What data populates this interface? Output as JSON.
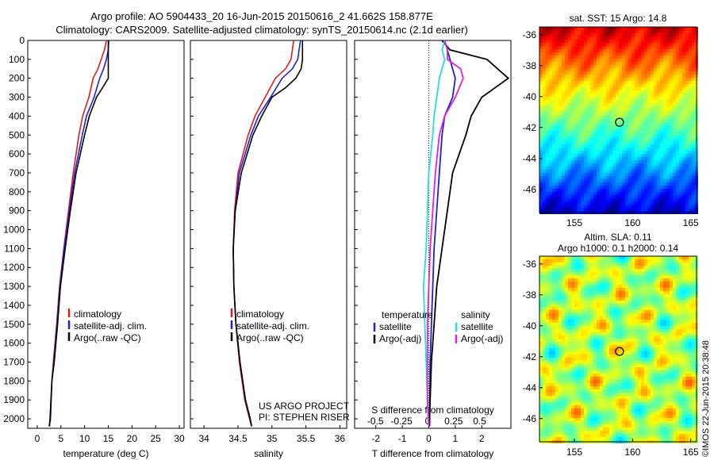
{
  "header": {
    "line1": "Argo profile: AO 5904433_20 16-Jun-2015 20150616_2 41.662S 158.877E",
    "line2": "Climatology: CARS2009. Satellite-adjusted climatology: synTS_20150614.nc (2.1d earlier)"
  },
  "credit": {
    "project": "US ARGO PROJECT",
    "pi": "PI: STEPHEN RISER",
    "stamp": "©IMOS 22-Jun-2015 20:38:48"
  },
  "colors": {
    "climatology": "#e41a1c",
    "satellite": "#1f1fd6",
    "argo": "#000000",
    "sal_satellite": "#22dddd",
    "sal_argo": "#e020e0"
  },
  "legend_profiles": {
    "items": [
      "climatology",
      "satellite-adj. clim.",
      "Argo(..raw -QC)"
    ]
  },
  "legend_diff": {
    "temp_head": "temperature",
    "sal_head": "salinity",
    "items": [
      "satellite",
      "Argo(-adj)"
    ]
  },
  "maps": {
    "sst_title": "sat. SST: 15 Argo: 14.8",
    "sla_title1": "Altim. SLA: 0.11",
    "sla_title2": "Argo h1000: 0.1 h2000: 0.14",
    "xticks": [
      "155",
      "160",
      "165"
    ],
    "yticks": [
      "-36",
      "-38",
      "-40",
      "-42",
      "-44",
      "-46"
    ],
    "argo_lon": 158.877,
    "argo_lat": -41.662
  },
  "chart_data": [
    {
      "type": "line",
      "name": "temperature-profile",
      "xlabel": "temperature (deg C)",
      "ylabel": "",
      "xlim": [
        -2,
        31
      ],
      "ylim": [
        2050,
        0
      ],
      "xticks": [
        0,
        5,
        10,
        15,
        20,
        25,
        30
      ],
      "yticks": [
        0,
        100,
        200,
        300,
        400,
        500,
        600,
        700,
        800,
        900,
        1000,
        1100,
        1200,
        1300,
        1400,
        1500,
        1600,
        1700,
        1800,
        1900,
        2000
      ],
      "series": [
        {
          "name": "climatology",
          "x": [
            14.6,
            14.2,
            13.5,
            12.8,
            11.8,
            10.9,
            9.6,
            8.8,
            7.6,
            6.6,
            5.6,
            4.7,
            4.1,
            3.4,
            3.1,
            2.7,
            2.5
          ],
          "y": [
            0,
            50,
            100,
            150,
            200,
            300,
            400,
            500,
            700,
            900,
            1100,
            1300,
            1500,
            1700,
            1800,
            2000,
            2040
          ]
        },
        {
          "name": "satellite-adj. clim.",
          "x": [
            15.1,
            15.0,
            14.6,
            14.0,
            13.2,
            12.0,
            10.4,
            9.5,
            7.9,
            6.8,
            5.7,
            4.8,
            4.2,
            3.5,
            3.1,
            2.8,
            2.5
          ],
          "y": [
            0,
            50,
            100,
            150,
            200,
            300,
            400,
            500,
            700,
            900,
            1100,
            1300,
            1500,
            1700,
            1800,
            2000,
            2040
          ]
        },
        {
          "name": "Argo(..raw -QC)",
          "x": [
            15.0,
            15.0,
            15.0,
            15.0,
            15.0,
            13.8,
            12.5,
            11.0,
            10.0,
            8.2,
            7.0,
            5.9,
            4.9,
            4.3,
            3.6,
            3.1,
            2.7,
            2.6
          ],
          "y": [
            0,
            50,
            100,
            150,
            200,
            250,
            300,
            400,
            500,
            700,
            900,
            1100,
            1300,
            1500,
            1700,
            1800,
            2000,
            2040
          ]
        }
      ]
    },
    {
      "type": "line",
      "name": "salinity-profile",
      "xlabel": "salinity",
      "ylabel": "",
      "xlim": [
        33.8,
        36.1
      ],
      "ylim": [
        2050,
        0
      ],
      "xticks": [
        34,
        34.5,
        35,
        35.5,
        36
      ],
      "series": [
        {
          "name": "climatology",
          "x": [
            35.32,
            35.3,
            35.28,
            35.2,
            35.05,
            34.9,
            34.75,
            34.65,
            34.5,
            34.45,
            34.43,
            34.44,
            34.47,
            34.52,
            34.6,
            34.67,
            34.7
          ],
          "y": [
            0,
            50,
            100,
            150,
            200,
            300,
            400,
            500,
            700,
            900,
            1100,
            1300,
            1500,
            1700,
            1900,
            2000,
            2040
          ]
        },
        {
          "name": "satellite-adj. clim.",
          "x": [
            35.42,
            35.4,
            35.38,
            35.3,
            35.15,
            34.98,
            34.8,
            34.69,
            34.52,
            34.46,
            34.43,
            34.44,
            34.47,
            34.53,
            34.61,
            34.68,
            34.7
          ],
          "y": [
            0,
            50,
            100,
            150,
            200,
            300,
            400,
            500,
            700,
            900,
            1100,
            1300,
            1500,
            1700,
            1900,
            2000,
            2040
          ]
        },
        {
          "name": "Argo(..raw -QC)",
          "x": [
            35.45,
            35.45,
            35.45,
            35.43,
            35.35,
            35.2,
            35.0,
            34.85,
            34.72,
            34.55,
            34.46,
            34.43,
            34.44,
            34.47,
            34.53,
            34.61,
            34.68,
            34.7
          ],
          "y": [
            0,
            50,
            100,
            150,
            200,
            250,
            300,
            400,
            500,
            700,
            900,
            1100,
            1300,
            1500,
            1700,
            1900,
            2000,
            2040
          ]
        }
      ]
    },
    {
      "type": "line",
      "name": "difference-profile",
      "xlabel": "T difference from climatology",
      "xlabel_top": "S difference from climatology",
      "xlim": [
        -2.8,
        3.1
      ],
      "ylim": [
        2050,
        0
      ],
      "xticks": [
        -2,
        -1,
        0,
        1,
        2
      ],
      "xticks_top": [
        -0.5,
        -0.25,
        0,
        0.25,
        0.5
      ],
      "series": [
        {
          "name": "temperature satellite",
          "x": [
            0.6,
            0.7,
            0.8,
            0.9,
            1.0,
            0.9,
            0.6,
            0.5,
            0.4,
            0.3,
            0.2,
            0.15,
            0.1,
            0.05,
            0.04,
            0.03
          ],
          "y": [
            0,
            50,
            100,
            150,
            200,
            300,
            400,
            500,
            700,
            900,
            1100,
            1300,
            1500,
            1700,
            1900,
            2040
          ]
        },
        {
          "name": "temperature Argo(-adj)",
          "x": [
            0.5,
            0.8,
            2.2,
            2.6,
            3.0,
            2.0,
            1.6,
            1.4,
            0.9,
            0.7,
            0.5,
            0.3,
            0.2,
            0.1,
            0.05,
            0.02
          ],
          "y": [
            0,
            50,
            100,
            150,
            200,
            300,
            400,
            500,
            700,
            900,
            1100,
            1300,
            1500,
            1700,
            1900,
            2040
          ]
        },
        {
          "name": "salinity satellite",
          "x": [
            0.6,
            0.5,
            0.6,
            0.5,
            0.4,
            0.3,
            0.2,
            0.15,
            0.0,
            -0.05,
            -0.1,
            -0.2,
            -0.15,
            -0.1,
            -0.05,
            0.0
          ],
          "y": [
            0,
            50,
            100,
            150,
            200,
            300,
            400,
            500,
            700,
            900,
            1100,
            1300,
            1500,
            1700,
            1900,
            2040
          ]
        },
        {
          "name": "salinity Argo(-adj)",
          "x": [
            0.6,
            0.7,
            0.7,
            1.2,
            1.3,
            1.0,
            0.6,
            0.4,
            0.25,
            0.15,
            0.05,
            0.0,
            -0.05,
            -0.05,
            -0.05,
            0.0
          ],
          "y": [
            0,
            50,
            100,
            150,
            200,
            300,
            400,
            500,
            700,
            900,
            1100,
            1300,
            1500,
            1700,
            1900,
            2040
          ]
        }
      ]
    }
  ]
}
